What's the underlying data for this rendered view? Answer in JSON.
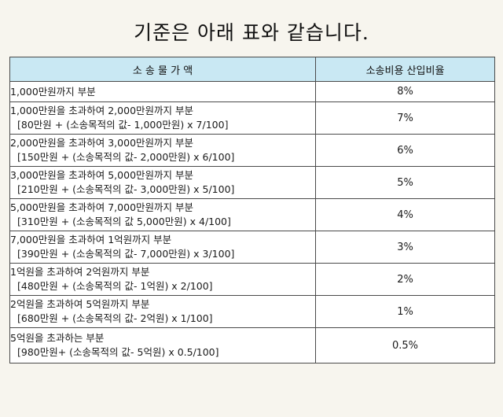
{
  "title": "기준은 아래 표와 같습니다.",
  "table": {
    "headers": [
      "소 송 물 가 액",
      "소송비용 산입비율"
    ],
    "rows": [
      {
        "range": "1,000만원까지 부분",
        "formula": "",
        "rate": "8%"
      },
      {
        "range": "1,000만원을 초과하여 2,000만원까지 부분",
        "formula": "[80만원 + (소송목적의 값- 1,000만원) x 7/100]",
        "rate": "7%"
      },
      {
        "range": "2,000만원을 초과하여 3,000만원까지 부분",
        "formula": "[150만원 + (소송목적의 값- 2,000만원) x 6/100]",
        "rate": "6%"
      },
      {
        "range": "3,000만원을 초과하여 5,000만원까지 부분",
        "formula": "[210만원 + (소송목적의 값- 3,000만원) x 5/100]",
        "rate": "5%"
      },
      {
        "range": "5,000만원을 초과하여 7,000만원까지 부분",
        "formula": "[310만원 + (소송목적의 값 5,000만원) x 4/100]",
        "rate": "4%"
      },
      {
        "range": "7,000만원을 초과하여 1억원까지 부분",
        "formula": "[390만원 + (소송목적의 값- 7,000만원) x 3/100]",
        "rate": "3%"
      },
      {
        "range": "1억원을 초과하여 2억원까지 부분",
        "formula": "[480만원 + (소송목적의 값- 1억원) x 2/100]",
        "rate": "2%"
      },
      {
        "range": "2억원을 초과하여 5억원까지 부분",
        "formula": "[680만원 + (소송목적의 값- 2억원) x 1/100]",
        "rate": "1%"
      },
      {
        "range": "5억원을 초과하는 부분",
        "formula": "[980만원+ (소송목적의 값- 5억원) x 0.5/100]",
        "rate": "0.5%"
      }
    ]
  },
  "colors": {
    "header_bg": "#c9e8f3",
    "border": "#4a4a4a",
    "page_bg": "#f7f5ee"
  }
}
